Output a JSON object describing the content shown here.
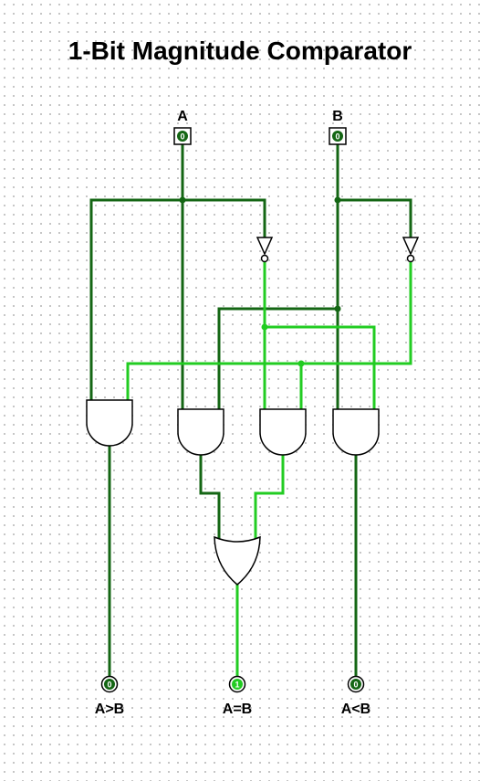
{
  "title": "1-Bit Magnitude Comparator",
  "inputs": [
    {
      "label": "A",
      "value": "0"
    },
    {
      "label": "B",
      "value": "0"
    }
  ],
  "outputs": [
    {
      "label": "A>B",
      "value": "0"
    },
    {
      "label": "A=B",
      "value": "1"
    },
    {
      "label": "A<B",
      "value": "0"
    }
  ],
  "colors": {
    "wire_low": "#146614",
    "wire_high": "#22cc22",
    "gate_stroke": "#000000",
    "grid_dot": "#b8b8b8"
  }
}
